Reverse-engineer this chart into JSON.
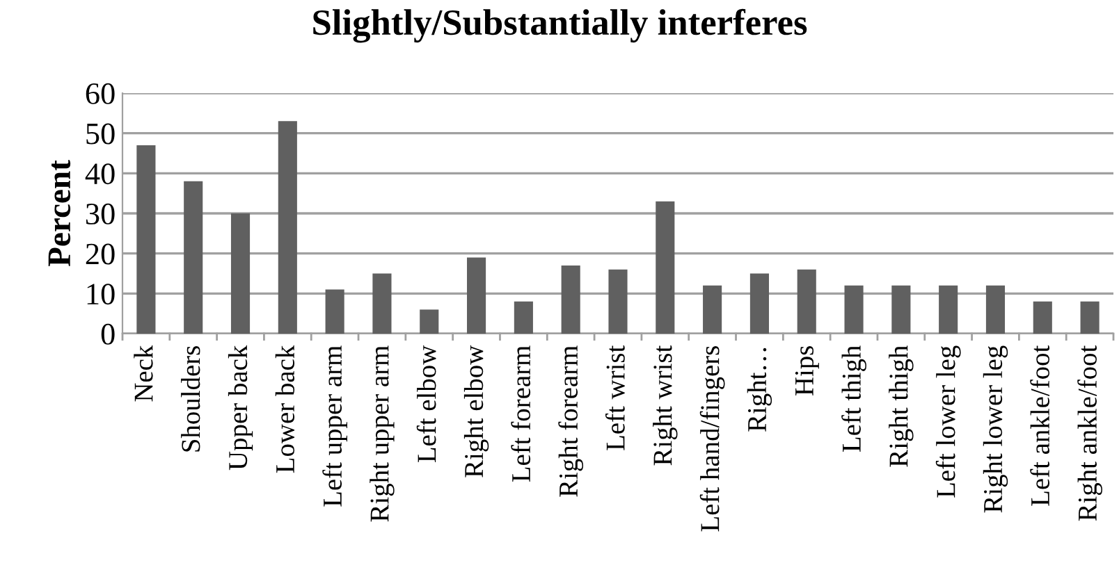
{
  "chart_data": {
    "type": "bar",
    "title": "Slightly/Substantially interferes",
    "ylabel": "Percent",
    "categories": [
      "Neck",
      "Shoulders",
      "Upper back",
      "Lower back",
      "Left upper arm",
      "Right upper arm",
      "Left elbow",
      "Right elbow",
      "Left forearm",
      "Right forearm",
      "Left wrist",
      "Right wrist",
      "Left hand/fingers",
      "Right…",
      "Hips",
      "Left thigh",
      "Right thigh",
      "Left lower leg",
      "Right lower leg",
      "Left ankle/foot",
      "Right ankle/foot"
    ],
    "values": [
      47,
      38,
      30,
      53,
      11,
      15,
      6,
      19,
      8,
      17,
      16,
      33,
      12,
      15,
      16,
      12,
      12,
      12,
      12,
      8,
      8
    ],
    "color": "#606060",
    "ylim": [
      0,
      60
    ],
    "yticks": [
      0,
      10,
      20,
      30,
      40,
      50,
      60
    ],
    "grid": "y"
  }
}
